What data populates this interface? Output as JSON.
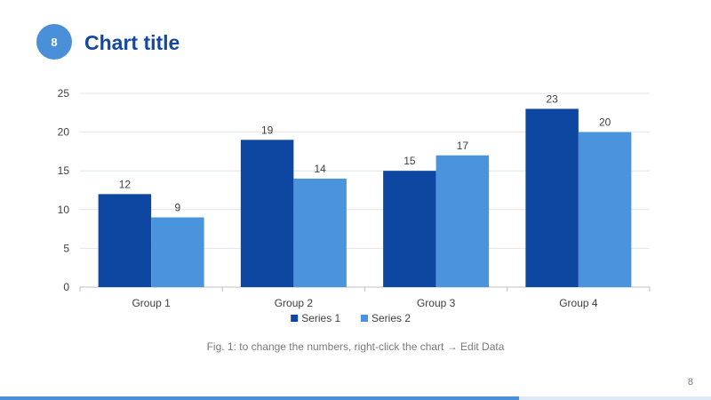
{
  "slide": {
    "badge": "8",
    "title": "Chart title",
    "caption": "Fig. 1: to change the numbers, right-click the chart → Edit Data",
    "page_number": "8"
  },
  "colors": {
    "accent": "#4a90d9",
    "title": "#1448a0",
    "series1": "#0e47a1",
    "series2": "#4a94de"
  },
  "chart_data": {
    "type": "bar",
    "title": "",
    "xlabel": "",
    "ylabel": "",
    "categories": [
      "Group 1",
      "Group 2",
      "Group 3",
      "Group 4"
    ],
    "series": [
      {
        "name": "Series 1",
        "values": [
          12,
          19,
          15,
          23
        ],
        "color": "#0e47a1"
      },
      {
        "name": "Series 2",
        "values": [
          9,
          14,
          17,
          20
        ],
        "color": "#4a94de"
      }
    ],
    "ylim": [
      0,
      25
    ],
    "yticks": [
      0,
      5,
      10,
      15,
      20,
      25
    ],
    "grid": true,
    "data_labels": true,
    "legend": "bottom"
  }
}
